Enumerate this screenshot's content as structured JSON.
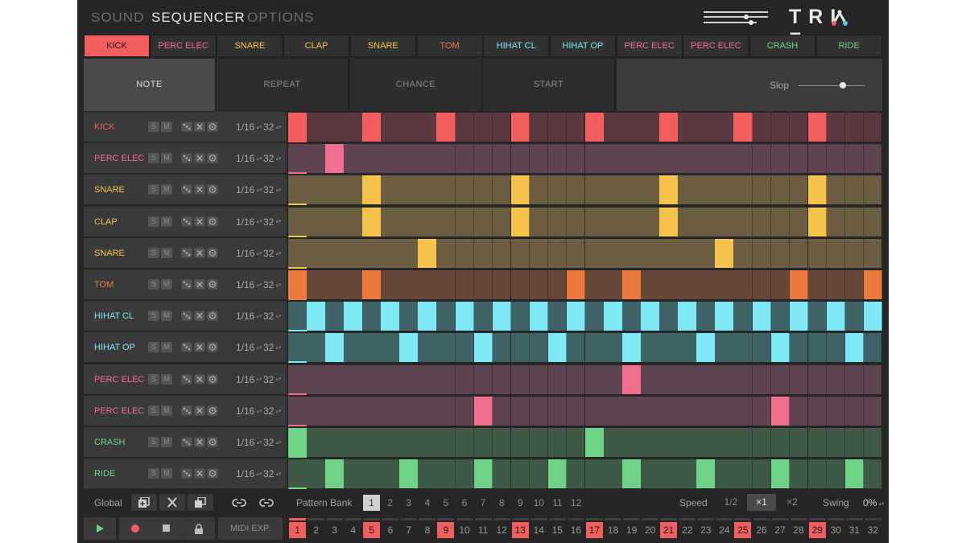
{
  "nav": {
    "tabs": [
      "SOUND",
      "SEQUENCER",
      "OPTIONS"
    ],
    "active": 1
  },
  "logo": {
    "left": "TRI",
    "right": "Z"
  },
  "instrument_tabs": [
    {
      "label": "KICK",
      "color": "#f25d5d"
    },
    {
      "label": "PERC ELEC",
      "color": "#f06e8e"
    },
    {
      "label": "SNARE",
      "color": "#f5c24c"
    },
    {
      "label": "CLAP",
      "color": "#f5c24c"
    },
    {
      "label": "SNARE",
      "color": "#f5c24c"
    },
    {
      "label": "TOM",
      "color": "#ec7a3f"
    },
    {
      "label": "HIHAT CL",
      "color": "#7fe8f5"
    },
    {
      "label": "HIHAT OP",
      "color": "#7fe8f5"
    },
    {
      "label": "PERC ELEC",
      "color": "#f06e8e"
    },
    {
      "label": "PERC ELEC",
      "color": "#f06e8e"
    },
    {
      "label": "CRASH",
      "color": "#6fd387"
    },
    {
      "label": "RIDE",
      "color": "#6fd387"
    }
  ],
  "mode_tabs": [
    "NOTE",
    "REPEAT",
    "CHANCE",
    "START"
  ],
  "slop": {
    "label": "Slop",
    "value": 0.7
  },
  "tracks": [
    {
      "name": "KICK",
      "division": "1/16",
      "length": "32",
      "color": "#f25d5d",
      "bg": "#5a3a40",
      "steps": [
        1,
        5,
        9,
        13,
        17,
        21,
        25,
        29
      ]
    },
    {
      "name": "PERC ELEC",
      "division": "1/16",
      "length": "32",
      "color": "#f06e8e",
      "bg": "#5e4450",
      "steps": [
        3
      ]
    },
    {
      "name": "SNARE",
      "division": "1/16",
      "length": "32",
      "color": "#f5c24c",
      "bg": "#6b5d42",
      "steps": [
        5,
        13,
        21,
        29
      ]
    },
    {
      "name": "CLAP",
      "division": "1/16",
      "length": "32",
      "color": "#f5c24c",
      "bg": "#6b5d42",
      "steps": [
        5,
        13,
        21,
        29
      ]
    },
    {
      "name": "SNARE",
      "division": "1/16",
      "length": "32",
      "color": "#f5c24c",
      "bg": "#6b5d42",
      "steps": [
        8,
        24
      ]
    },
    {
      "name": "TOM",
      "division": "1/16",
      "length": "32",
      "color": "#ec7a3f",
      "bg": "#664738",
      "steps": [
        1,
        5,
        16,
        19,
        28,
        32
      ]
    },
    {
      "name": "HIHAT CL",
      "division": "1/16",
      "length": "32",
      "color": "#7fe8f5",
      "bg": "#3f6266",
      "steps": [
        2,
        4,
        6,
        8,
        10,
        12,
        14,
        16,
        18,
        20,
        22,
        24,
        26,
        28,
        30,
        32
      ]
    },
    {
      "name": "HIHAT OP",
      "division": "1/16",
      "length": "32",
      "color": "#7fe8f5",
      "bg": "#3f6266",
      "steps": [
        3,
        7,
        11,
        15,
        19,
        23,
        27,
        31
      ]
    },
    {
      "name": "PERC ELEC",
      "division": "1/16",
      "length": "32",
      "color": "#f06e8e",
      "bg": "#5e4450",
      "steps": [
        19
      ]
    },
    {
      "name": "PERC ELEC",
      "division": "1/16",
      "length": "32",
      "color": "#f06e8e",
      "bg": "#5e4450",
      "steps": [
        11,
        27
      ]
    },
    {
      "name": "CRASH",
      "division": "1/16",
      "length": "32",
      "color": "#6fd387",
      "bg": "#3e5a47",
      "steps": [
        1,
        17
      ]
    },
    {
      "name": "RIDE",
      "division": "1/16",
      "length": "32",
      "color": "#6fd387",
      "bg": "#3e5a47",
      "steps": [
        3,
        7,
        11,
        15,
        19,
        23,
        27,
        31
      ]
    }
  ],
  "row_buttons": {
    "solo": "S",
    "mute": "M"
  },
  "toolbar": {
    "global_label": "Global",
    "pattern_bank_label": "Pattern Bank",
    "pattern_banks": [
      "1",
      "2",
      "3",
      "4",
      "5",
      "6",
      "7",
      "8",
      "9",
      "10",
      "11",
      "12"
    ],
    "active_bank": 0,
    "speed_label": "Speed",
    "speeds": [
      "1/2",
      "×1",
      "×2"
    ],
    "active_speed": 1,
    "swing_label": "Swing",
    "swing_value": "0%"
  },
  "transport": {
    "midi_export": "MIDI EXP."
  },
  "step_numbers": [
    "1",
    "2",
    "3",
    "4",
    "5",
    "6",
    "7",
    "8",
    "9",
    "10",
    "11",
    "12",
    "13",
    "14",
    "15",
    "16",
    "17",
    "18",
    "19",
    "20",
    "21",
    "22",
    "23",
    "24",
    "25",
    "26",
    "27",
    "28",
    "29",
    "30",
    "31",
    "32"
  ],
  "marked_steps": [
    1,
    5,
    9,
    13,
    17,
    21,
    25,
    29
  ],
  "icons": {
    "dice": "dice-icon",
    "clear": "x-icon",
    "copy": "copy-icon",
    "add": "add-pattern-icon",
    "link": "link-icon",
    "unlink": "unlink-icon",
    "play": "play-icon",
    "record": "record-icon",
    "stop": "stop-icon",
    "lock": "lock-icon"
  }
}
